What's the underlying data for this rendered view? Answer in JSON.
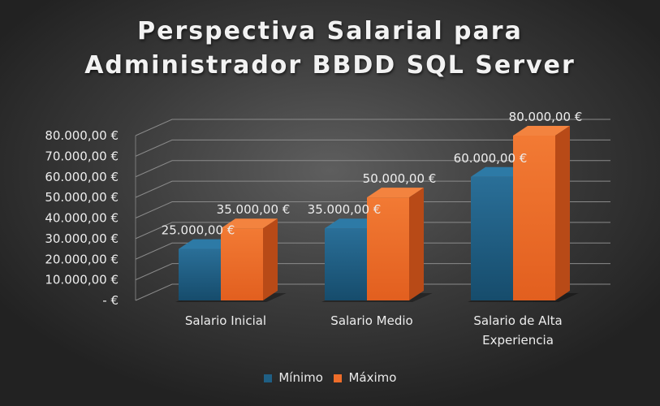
{
  "chart_data": {
    "type": "bar",
    "title_lines": [
      "Perspectiva Salarial para",
      "Administrador BBDD SQL Server"
    ],
    "categories": [
      [
        "Salario Inicial"
      ],
      [
        "Salario Medio"
      ],
      [
        "Salario de Alta",
        "Experiencia"
      ]
    ],
    "series": [
      {
        "name": "Mínimo",
        "values": [
          25000,
          35000,
          60000
        ],
        "labels": [
          "25.000,00 €",
          "35.000,00 €",
          "60.000,00 €"
        ],
        "color": "#1f5f84"
      },
      {
        "name": "Máximo",
        "values": [
          35000,
          50000,
          80000
        ],
        "labels": [
          "35.000,00 €",
          "50.000,00 €",
          "80.000,00 €"
        ],
        "color": "#ee6d2a"
      }
    ],
    "y_ticks": [
      {
        "value": 0,
        "label": "-  €"
      },
      {
        "value": 10000,
        "label": "10.000,00 €"
      },
      {
        "value": 20000,
        "label": "20.000,00 €"
      },
      {
        "value": 30000,
        "label": "30.000,00 €"
      },
      {
        "value": 40000,
        "label": "40.000,00 €"
      },
      {
        "value": 50000,
        "label": "50.000,00 €"
      },
      {
        "value": 60000,
        "label": "60.000,00 €"
      },
      {
        "value": 70000,
        "label": "70.000,00 €"
      },
      {
        "value": 80000,
        "label": "80.000,00 €"
      }
    ],
    "ylim": [
      0,
      80000
    ],
    "grid": true,
    "legend_position": "bottom"
  }
}
